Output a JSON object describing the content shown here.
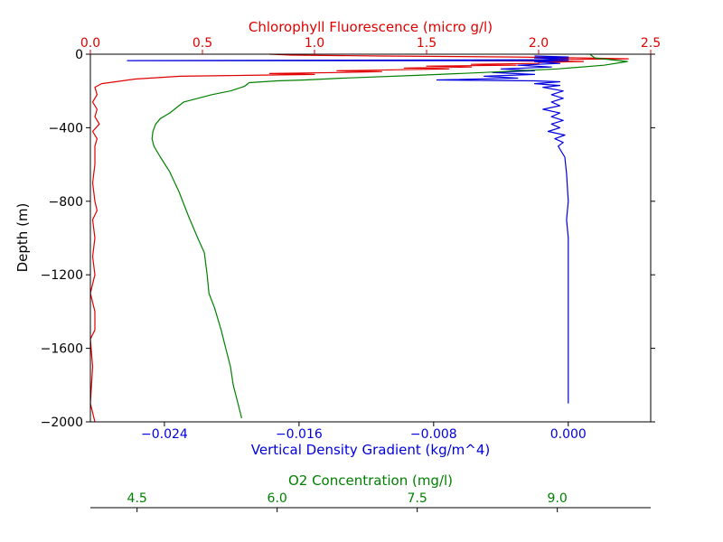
{
  "chart_data": {
    "type": "line",
    "ylabel": "Depth (m)",
    "ylim": [
      -2000,
      0
    ],
    "yticks": [
      0,
      -400,
      -800,
      -1200,
      -1600,
      -2000
    ],
    "ytick_labels": [
      "0",
      "−400",
      "−800",
      "−1200",
      "−1600",
      "−2000"
    ],
    "axes": {
      "chlorophyll": {
        "label": "Chlorophyll Fluorescence (micro g/l)",
        "color": "#e00000",
        "range": [
          0,
          2.5
        ],
        "ticks": [
          0,
          0.5,
          1.0,
          1.5,
          2.0,
          2.5
        ],
        "tick_labels": [
          "0.0",
          "0.5",
          "1.0",
          "1.5",
          "2.0",
          "2.5"
        ]
      },
      "density": {
        "label": "Vertical Density Gradient (kg/m^4)",
        "color": "#0000dd",
        "range": [
          -0.0284,
          0.0049
        ],
        "ticks": [
          -0.024,
          -0.016,
          -0.008,
          0.0
        ],
        "tick_labels": [
          "−0.024",
          "−0.016",
          "−0.008",
          "0.000"
        ]
      },
      "oxygen": {
        "label": "O2 Concentration (mg/l)",
        "color": "#008000",
        "range": [
          4.0,
          10.0
        ],
        "ticks": [
          4.5,
          6.0,
          7.5,
          9.0
        ],
        "tick_labels": [
          "4.5",
          "6.0",
          "7.5",
          "9.0"
        ]
      }
    },
    "series": [
      {
        "name": "Chlorophyll Fluorescence",
        "axis": "chlorophyll",
        "color": "#e00000",
        "points": [
          [
            0.8,
            0
          ],
          [
            0.9,
            -5
          ],
          [
            1.3,
            -10
          ],
          [
            1.9,
            -15
          ],
          [
            2.2,
            -20
          ],
          [
            2.4,
            -25
          ],
          [
            2.0,
            -30
          ],
          [
            1.7,
            -35
          ],
          [
            2.2,
            -40
          ],
          [
            2.0,
            -45
          ],
          [
            2.0,
            -50
          ],
          [
            1.7,
            -55
          ],
          [
            1.9,
            -60
          ],
          [
            1.5,
            -65
          ],
          [
            1.7,
            -70
          ],
          [
            1.4,
            -75
          ],
          [
            1.6,
            -80
          ],
          [
            1.1,
            -90
          ],
          [
            1.3,
            -95
          ],
          [
            1.1,
            -100
          ],
          [
            0.8,
            -105
          ],
          [
            1.0,
            -110
          ],
          [
            0.7,
            -115
          ],
          [
            0.4,
            -120
          ],
          [
            0.2,
            -135
          ],
          [
            0.05,
            -160
          ],
          [
            0.02,
            -180
          ],
          [
            0.03,
            -220
          ],
          [
            0.01,
            -260
          ],
          [
            0.03,
            -300
          ],
          [
            0.02,
            -340
          ],
          [
            0.04,
            -380
          ],
          [
            0.01,
            -420
          ],
          [
            0.03,
            -460
          ],
          [
            0.02,
            -500
          ],
          [
            0.02,
            -600
          ],
          [
            0.01,
            -700
          ],
          [
            0.02,
            -800
          ],
          [
            0.03,
            -850
          ],
          [
            0.01,
            -900
          ],
          [
            0.02,
            -1000
          ],
          [
            0.01,
            -1100
          ],
          [
            0.02,
            -1200
          ],
          [
            0.0,
            -1300
          ],
          [
            0.02,
            -1400
          ],
          [
            0.02,
            -1500
          ],
          [
            0.0,
            -1550
          ],
          [
            0.01,
            -1700
          ],
          [
            0.0,
            -1900
          ],
          [
            0.02,
            -2000
          ]
        ]
      },
      {
        "name": "Vertical Density Gradient",
        "axis": "density",
        "color": "#0000dd",
        "points": [
          [
            -0.002,
            -10
          ],
          [
            0.0,
            -15
          ],
          [
            -0.002,
            -20
          ],
          [
            0.0,
            -25
          ],
          [
            -0.0015,
            -30
          ],
          [
            -0.0262,
            -35
          ],
          [
            0.0,
            -35
          ],
          [
            -0.002,
            -40
          ],
          [
            -0.0005,
            -50
          ],
          [
            -0.003,
            -60
          ],
          [
            -0.001,
            -70
          ],
          [
            -0.004,
            -80
          ],
          [
            -0.002,
            -90
          ],
          [
            -0.0045,
            -100
          ],
          [
            -0.002,
            -110
          ],
          [
            -0.005,
            -120
          ],
          [
            -0.003,
            -130
          ],
          [
            -0.0078,
            -140
          ],
          [
            -0.002,
            -145
          ],
          [
            -0.0005,
            -150
          ],
          [
            -0.002,
            -160
          ],
          [
            -0.0005,
            -170
          ],
          [
            -0.0015,
            -180
          ],
          [
            -0.0003,
            -200
          ],
          [
            -0.001,
            -220
          ],
          [
            -0.0003,
            -240
          ],
          [
            -0.001,
            -260
          ],
          [
            -0.0005,
            -280
          ],
          [
            -0.0015,
            -300
          ],
          [
            -0.0005,
            -320
          ],
          [
            -0.001,
            -340
          ],
          [
            -0.0003,
            -360
          ],
          [
            -0.001,
            -380
          ],
          [
            -0.0005,
            -400
          ],
          [
            -0.0012,
            -420
          ],
          [
            -0.0002,
            -440
          ],
          [
            -0.0008,
            -460
          ],
          [
            -0.0003,
            -480
          ],
          [
            -0.0006,
            -500
          ],
          [
            -0.0002,
            -560
          ],
          [
            -0.0001,
            -650
          ],
          [
            0.0,
            -800
          ],
          [
            -0.0001,
            -900
          ],
          [
            0.0,
            -1000
          ],
          [
            0.0,
            -1200
          ],
          [
            0.0,
            -1400
          ],
          [
            0.0,
            -1600
          ],
          [
            0.0,
            -1800
          ],
          [
            0.0,
            -1900
          ]
        ]
      },
      {
        "name": "O2 Concentration",
        "axis": "oxygen",
        "color": "#008000",
        "points": [
          [
            9.35,
            0
          ],
          [
            9.4,
            -20
          ],
          [
            9.75,
            -40
          ],
          [
            9.5,
            -60
          ],
          [
            9.0,
            -80
          ],
          [
            8.2,
            -100
          ],
          [
            7.5,
            -115
          ],
          [
            6.7,
            -130
          ],
          [
            6.3,
            -140
          ],
          [
            6.0,
            -145
          ],
          [
            5.7,
            -155
          ],
          [
            5.65,
            -175
          ],
          [
            5.5,
            -200
          ],
          [
            5.3,
            -220
          ],
          [
            5.0,
            -260
          ],
          [
            4.85,
            -320
          ],
          [
            4.75,
            -350
          ],
          [
            4.7,
            -380
          ],
          [
            4.67,
            -420
          ],
          [
            4.66,
            -460
          ],
          [
            4.68,
            -500
          ],
          [
            4.75,
            -560
          ],
          [
            4.85,
            -640
          ],
          [
            4.95,
            -750
          ],
          [
            5.05,
            -880
          ],
          [
            5.15,
            -1000
          ],
          [
            5.22,
            -1080
          ],
          [
            5.25,
            -1200
          ],
          [
            5.27,
            -1300
          ],
          [
            5.33,
            -1380
          ],
          [
            5.4,
            -1500
          ],
          [
            5.45,
            -1600
          ],
          [
            5.5,
            -1700
          ],
          [
            5.53,
            -1800
          ],
          [
            5.58,
            -1900
          ],
          [
            5.62,
            -1980
          ]
        ]
      }
    ]
  }
}
